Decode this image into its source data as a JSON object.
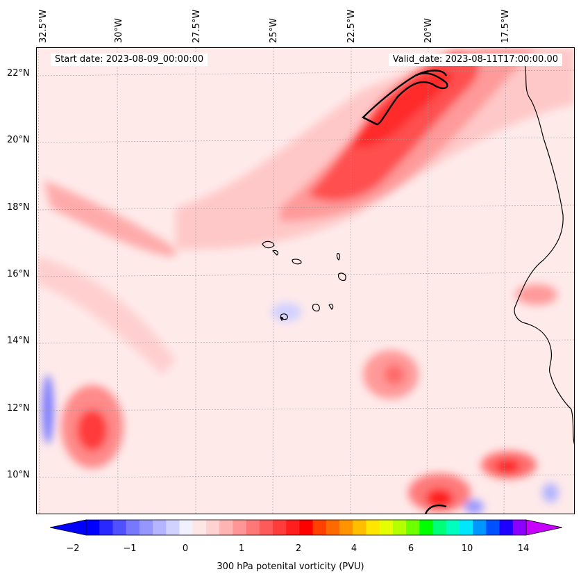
{
  "map": {
    "start_label": "Start date: 2023-08-09_00:00:00",
    "valid_label": "Valid_date: 2023-08-11T17:00:00.00",
    "longitude_labels": [
      "32.5°W",
      "30°W",
      "27.5°W",
      "25°W",
      "22.5°W",
      "20°W",
      "17.5°W"
    ],
    "latitude_labels": [
      "22°N",
      "20°N",
      "18°N",
      "16°N",
      "14°N",
      "12°N",
      "10°N"
    ]
  },
  "colorbar": {
    "label": "300 hPa potenital vorticity (PVU)",
    "ticks": [
      "−2",
      "−1",
      "0",
      "1",
      "2",
      "4",
      "6",
      "10",
      "14"
    ],
    "colors": [
      "#0000ff",
      "#2828ff",
      "#5050ff",
      "#7878ff",
      "#9696ff",
      "#b4b4ff",
      "#d2d2ff",
      "#f0f0ff",
      "#ffe6e6",
      "#ffd2d2",
      "#ffb4b4",
      "#ff9696",
      "#ff7878",
      "#ff5a5a",
      "#ff3c3c",
      "#ff1e1e",
      "#ff0000",
      "#ff4000",
      "#ff6a00",
      "#ff9400",
      "#ffbe00",
      "#ffe600",
      "#e6ff00",
      "#b4ff00",
      "#6eff00",
      "#00ff00",
      "#00ff78",
      "#00ffbe",
      "#00e6ff",
      "#0096ff",
      "#0050ff",
      "#1e00ff",
      "#8c00ff"
    ],
    "extend_low_color": "#0000ff",
    "extend_high_color": "#c800ff"
  }
}
